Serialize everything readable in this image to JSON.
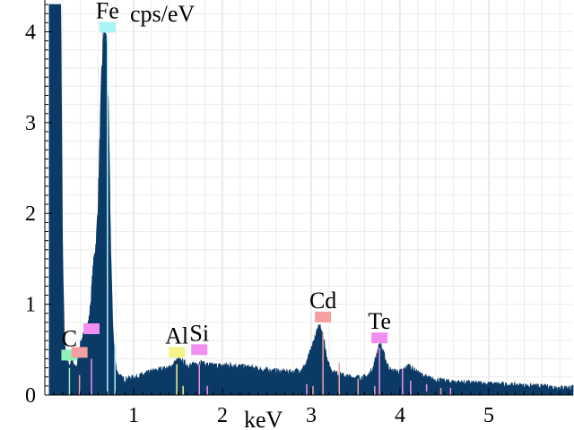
{
  "chart_data": {
    "type": "area",
    "xlabel": "keV",
    "ylabel": "cps/eV",
    "xlim": [
      0.0,
      5.95
    ],
    "ylim": [
      0,
      4.35
    ],
    "x_ticks": [
      1,
      2,
      3,
      4,
      5
    ],
    "y_ticks": [
      0,
      1,
      2,
      3,
      4
    ],
    "grid": true,
    "fill_color": "#0b3a66",
    "series": [
      {
        "x": [
          0.05,
          0.08,
          0.1,
          0.12,
          0.14,
          0.16,
          0.18,
          0.2,
          0.22,
          0.24,
          0.26,
          0.28,
          0.3,
          0.32,
          0.34,
          0.36,
          0.38,
          0.4,
          0.42,
          0.44,
          0.46,
          0.48,
          0.5,
          0.52,
          0.54,
          0.56,
          0.58,
          0.6,
          0.62,
          0.64,
          0.66,
          0.68,
          0.7,
          0.72,
          0.74,
          0.76,
          0.78,
          0.8,
          0.82,
          0.84,
          0.86,
          0.88,
          0.9,
          0.95,
          1.0,
          1.05,
          1.1,
          1.2,
          1.3,
          1.4,
          1.45,
          1.5,
          1.55,
          1.6,
          1.65,
          1.7,
          1.75,
          1.8,
          1.9,
          2.0,
          2.1,
          2.2,
          2.3,
          2.4,
          2.5,
          2.6,
          2.7,
          2.8,
          2.9,
          2.95,
          3.0,
          3.05,
          3.08,
          3.1,
          3.12,
          3.14,
          3.16,
          3.2,
          3.25,
          3.3,
          3.4,
          3.5,
          3.6,
          3.65,
          3.7,
          3.72,
          3.74,
          3.76,
          3.78,
          3.8,
          3.85,
          3.9,
          4.0,
          4.05,
          4.1,
          4.15,
          4.2,
          4.3,
          4.4,
          4.5,
          4.6,
          4.8,
          5.0,
          5.2,
          5.4,
          5.6,
          5.8,
          5.95
        ],
        "y": [
          4.3,
          4.3,
          4.3,
          4.3,
          4.3,
          4.3,
          4.3,
          1.5,
          0.6,
          0.4,
          0.35,
          0.33,
          0.38,
          0.34,
          0.3,
          0.32,
          0.4,
          0.55,
          0.62,
          0.66,
          0.7,
          0.76,
          0.84,
          1.05,
          1.35,
          1.55,
          1.7,
          2.1,
          2.8,
          3.5,
          3.95,
          4.0,
          3.8,
          2.9,
          1.7,
          0.9,
          0.5,
          0.32,
          0.24,
          0.21,
          0.19,
          0.18,
          0.17,
          0.18,
          0.19,
          0.2,
          0.22,
          0.25,
          0.28,
          0.29,
          0.34,
          0.38,
          0.36,
          0.33,
          0.32,
          0.34,
          0.36,
          0.33,
          0.32,
          0.32,
          0.33,
          0.31,
          0.3,
          0.28,
          0.27,
          0.26,
          0.25,
          0.25,
          0.28,
          0.35,
          0.5,
          0.65,
          0.72,
          0.76,
          0.72,
          0.62,
          0.5,
          0.32,
          0.25,
          0.23,
          0.2,
          0.19,
          0.19,
          0.22,
          0.3,
          0.38,
          0.46,
          0.52,
          0.55,
          0.5,
          0.35,
          0.26,
          0.25,
          0.28,
          0.32,
          0.28,
          0.24,
          0.19,
          0.16,
          0.15,
          0.14,
          0.13,
          0.12,
          0.11,
          0.1,
          0.09,
          0.08,
          0.08
        ]
      }
    ],
    "element_labels": [
      {
        "label": "Fe",
        "energy": 0.705,
        "marker_color": "#a8f4f6",
        "marker_y": 4.05
      },
      {
        "label": "C",
        "energy": 0.277,
        "marker_color": "#8ff0b8",
        "marker_y": 0.44
      },
      {
        "label": "",
        "energy": 0.39,
        "marker_color": "#f5a0a0",
        "marker_y": 0.47
      },
      {
        "label": "",
        "energy": 0.525,
        "marker_color": "#f28ef2",
        "marker_y": 0.73
      },
      {
        "label": "Al",
        "energy": 1.486,
        "marker_color": "#f4f48a",
        "marker_y": 0.47
      },
      {
        "label": "Si",
        "energy": 1.74,
        "marker_color": "#f28ef2",
        "marker_y": 0.5
      },
      {
        "label": "Cd",
        "energy": 3.133,
        "marker_color": "#f5a0a0",
        "marker_y": 0.86
      },
      {
        "label": "Te",
        "energy": 3.769,
        "marker_color": "#f28ef2",
        "marker_y": 0.63
      }
    ],
    "peak_lines": [
      {
        "energy": 0.277,
        "height": 0.3,
        "color": "#8ff0b8"
      },
      {
        "energy": 0.39,
        "height": 0.22,
        "color": "#f5a0a0"
      },
      {
        "energy": 0.525,
        "height": 0.4,
        "color": "#f28ef2"
      },
      {
        "energy": 0.705,
        "height": 3.95,
        "color": "#a8f4f6"
      },
      {
        "energy": 0.79,
        "height": 0.55,
        "color": "#a8f4f6"
      },
      {
        "energy": 1.486,
        "height": 0.34,
        "color": "#f4f48a"
      },
      {
        "energy": 1.557,
        "height": 0.1,
        "color": "#f4f48a"
      },
      {
        "energy": 1.74,
        "height": 0.34,
        "color": "#f28ef2"
      },
      {
        "energy": 1.83,
        "height": 0.1,
        "color": "#f28ef2"
      },
      {
        "energy": 3.133,
        "height": 0.7,
        "color": "#f5a0a0"
      },
      {
        "energy": 3.316,
        "height": 0.36,
        "color": "#f5a0a0"
      },
      {
        "energy": 3.528,
        "height": 0.18,
        "color": "#f5a0a0"
      },
      {
        "energy": 3.716,
        "height": 0.1,
        "color": "#f5a0a0"
      },
      {
        "energy": 3.769,
        "height": 0.52,
        "color": "#f28ef2"
      },
      {
        "energy": 4.029,
        "height": 0.3,
        "color": "#f28ef2"
      },
      {
        "energy": 4.12,
        "height": 0.16,
        "color": "#f28ef2"
      },
      {
        "energy": 4.3,
        "height": 0.12,
        "color": "#f28ef2"
      },
      {
        "energy": 4.57,
        "height": 0.08,
        "color": "#f28ef2"
      },
      {
        "energy": 2.95,
        "height": 0.12,
        "color": "#f28ef2"
      },
      {
        "energy": 3.02,
        "height": 0.1,
        "color": "#f5a0a0"
      },
      {
        "energy": 4.46,
        "height": 0.08,
        "color": "#f5a0a0"
      }
    ]
  }
}
